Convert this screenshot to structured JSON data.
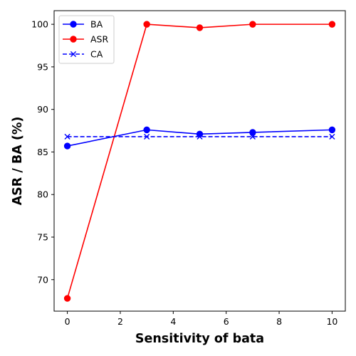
{
  "chart_data": {
    "type": "line",
    "xlabel": "Sensitivity of bata",
    "ylabel": "ASR / BA (%)",
    "xlim": [
      -0.5,
      10.5
    ],
    "ylim": [
      66.3,
      101.6
    ],
    "x_ticks": [
      0,
      2,
      4,
      6,
      8,
      10
    ],
    "y_ticks": [
      70,
      75,
      80,
      85,
      90,
      95,
      100
    ],
    "grid": false,
    "legend_position": "upper-left",
    "series": [
      {
        "name": "BA",
        "x": [
          0,
          3,
          5,
          7,
          10
        ],
        "y": [
          85.7,
          87.6,
          87.1,
          87.3,
          87.6
        ],
        "color": "#0000ff",
        "linestyle": "solid",
        "marker": "circle"
      },
      {
        "name": "ASR",
        "x": [
          0,
          3,
          5,
          7,
          10
        ],
        "y": [
          67.8,
          100.0,
          99.6,
          100.0,
          100.0
        ],
        "color": "#ff0000",
        "linestyle": "solid",
        "marker": "circle"
      },
      {
        "name": "CA",
        "x": [
          0,
          3,
          5,
          7,
          10
        ],
        "y": [
          86.8,
          86.8,
          86.8,
          86.8,
          86.8
        ],
        "color": "#0000ff",
        "linestyle": "dashed",
        "marker": "x"
      }
    ]
  }
}
